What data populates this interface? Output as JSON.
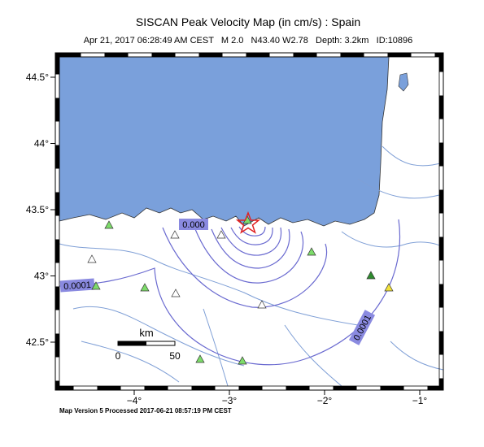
{
  "header": {
    "title": "SISCAN Peak Velocity Map (in cm/s) : Spain",
    "subtitle": "Apr 21, 2017 06:28:49 AM CEST   M 2.0   N43.40 W2.78   Depth: 3.2km   ID:10896"
  },
  "map": {
    "lat_ticks": [
      {
        "value": 44.5,
        "label": "44.5°"
      },
      {
        "value": 44,
        "label": "44°"
      },
      {
        "value": 43.5,
        "label": "43.5°"
      },
      {
        "value": 43,
        "label": "43°"
      },
      {
        "value": 42.5,
        "label": "42.5°"
      }
    ],
    "lon_ticks": [
      {
        "value": -4,
        "label": "−4°"
      },
      {
        "value": -3,
        "label": "−3°"
      },
      {
        "value": -2,
        "label": "−2°"
      },
      {
        "value": -1,
        "label": "−1°"
      }
    ],
    "contour_labels": [
      "0.0001",
      "0.000",
      "0.0001"
    ],
    "scale_bar": {
      "unit": "km",
      "start": "0",
      "end": "50"
    }
  },
  "footer": "Map Version 5 Processed 2017-06-21 08:57:19 PM CEST"
}
